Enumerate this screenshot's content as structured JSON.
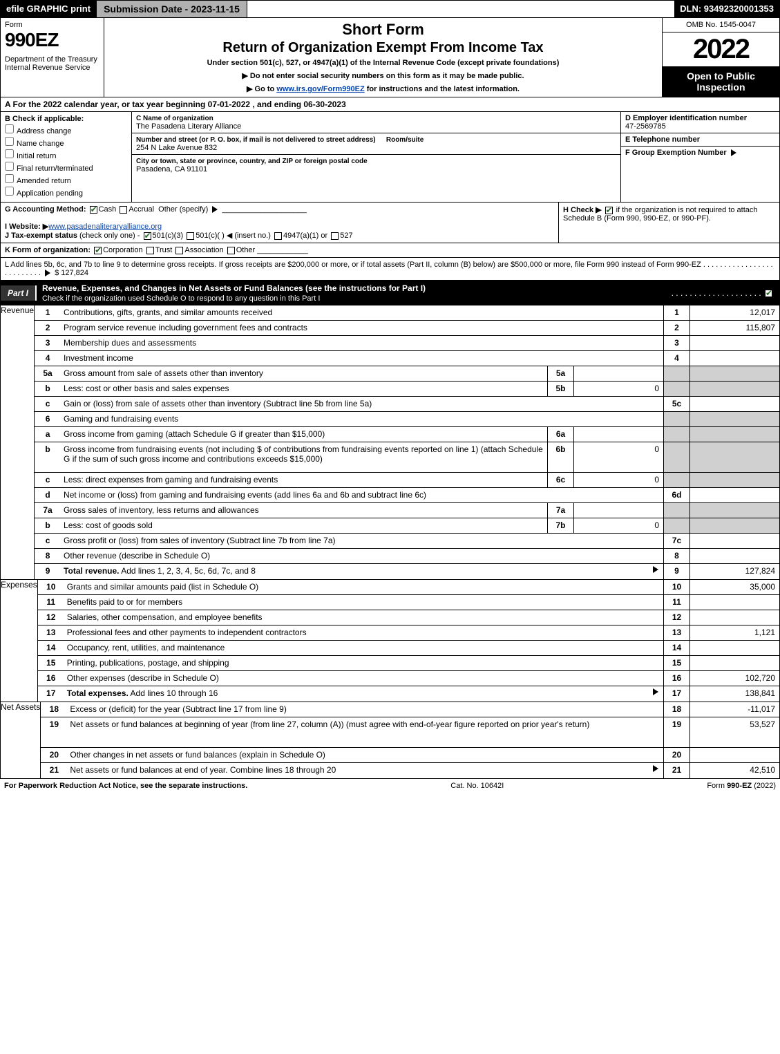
{
  "topbar": {
    "efile": "efile GRAPHIC print",
    "submission": "Submission Date - 2023-11-15",
    "dln": "DLN: 93492320001353"
  },
  "header": {
    "form": "Form",
    "formnum": "990EZ",
    "dept": "Department of the Treasury",
    "irs": "Internal Revenue Service",
    "title1": "Short Form",
    "title2": "Return of Organization Exempt From Income Tax",
    "sub": "Under section 501(c), 527, or 4947(a)(1) of the Internal Revenue Code (except private foundations)",
    "note1": "▶ Do not enter social security numbers on this form as it may be made public.",
    "note2": "▶ Go to ",
    "note2link": "www.irs.gov/Form990EZ",
    "note2b": " for instructions and the latest information.",
    "omb": "OMB No. 1545-0047",
    "year": "2022",
    "open": "Open to Public Inspection"
  },
  "A": {
    "text": "A  For the 2022 calendar year, or tax year beginning 07-01-2022 , and ending 06-30-2023"
  },
  "B": {
    "label": "B  Check if applicable:",
    "items": [
      "Address change",
      "Name change",
      "Initial return",
      "Final return/terminated",
      "Amended return",
      "Application pending"
    ]
  },
  "C": {
    "nameLabel": "C Name of organization",
    "name": "The Pasadena Literary Alliance",
    "streetLabel": "Number and street (or P. O. box, if mail is not delivered to street address)",
    "roomLabel": "Room/suite",
    "street": "254 N Lake Avenue 832",
    "cityLabel": "City or town, state or province, country, and ZIP or foreign postal code",
    "city": "Pasadena, CA  91101"
  },
  "D": {
    "label": "D Employer identification number",
    "val": "47-2569785"
  },
  "E": {
    "label": "E Telephone number",
    "val": ""
  },
  "F": {
    "label": "F Group Exemption Number",
    "arrow": "▶"
  },
  "G": {
    "label": "G Accounting Method:",
    "cash": "Cash",
    "accrual": "Accrual",
    "other": "Other (specify)"
  },
  "H": {
    "label": "H  Check ▶",
    "text": " if the organization is not required to attach Schedule B (Form 990, 990-EZ, or 990-PF)."
  },
  "I": {
    "label": "I Website: ▶",
    "val": "www.pasadenaliteraryalliance.org"
  },
  "J": {
    "label": "J Tax-exempt status",
    "rest": "(check only one) -  ",
    "c3": "501(c)(3)",
    "c": "501(c)(  )",
    "insert": "◀ (insert no.)",
    "a4947": "4947(a)(1) or",
    "s527": "527"
  },
  "K": {
    "label": "K Form of organization:",
    "corp": "Corporation",
    "trust": "Trust",
    "assoc": "Association",
    "other": "Other"
  },
  "L": {
    "text": "L Add lines 5b, 6c, and 7b to line 9 to determine gross receipts. If gross receipts are $200,000 or more, or if total assets (Part II, column (B) below) are $500,000 or more, file Form 990 instead of Form 990-EZ",
    "val": "$ 127,824"
  },
  "partI": {
    "label": "Part I",
    "title": "Revenue, Expenses, and Changes in Net Assets or Fund Balances (see the instructions for Part I)",
    "check": "Check if the organization used Schedule O to respond to any question in this Part I"
  },
  "sidecats": {
    "rev": "Revenue",
    "exp": "Expenses",
    "net": "Net Assets"
  },
  "rows": [
    {
      "n": "1",
      "d": "Contributions, gifts, grants, and similar amounts received",
      "rn": "1",
      "rv": "12,017"
    },
    {
      "n": "2",
      "d": "Program service revenue including government fees and contracts",
      "rn": "2",
      "rv": "115,807"
    },
    {
      "n": "3",
      "d": "Membership dues and assessments",
      "rn": "3",
      "rv": ""
    },
    {
      "n": "4",
      "d": "Investment income",
      "rn": "4",
      "rv": ""
    },
    {
      "n": "5a",
      "d": "Gross amount from sale of assets other than inventory",
      "sc": "5a",
      "sv": "",
      "shadeR": true
    },
    {
      "n": "b",
      "d": "Less: cost or other basis and sales expenses",
      "sc": "5b",
      "sv": "0",
      "shadeR": true
    },
    {
      "n": "c",
      "d": "Gain or (loss) from sale of assets other than inventory (Subtract line 5b from line 5a)",
      "rn": "5c",
      "rv": ""
    },
    {
      "n": "6",
      "d": "Gaming and fundraising events",
      "shadeR": true,
      "shadeN": true
    },
    {
      "n": "a",
      "d": "Gross income from gaming (attach Schedule G if greater than $15,000)",
      "sc": "6a",
      "sv": "",
      "shadeR": true
    },
    {
      "n": "b",
      "d": "Gross income from fundraising events (not including $                         of contributions from fundraising events reported on line 1) (attach Schedule G if the sum of such gross income and contributions exceeds $15,000)",
      "sc": "6b",
      "sv": "0",
      "shadeR": true,
      "tall": true
    },
    {
      "n": "c",
      "d": "Less: direct expenses from gaming and fundraising events",
      "sc": "6c",
      "sv": "0",
      "shadeR": true
    },
    {
      "n": "d",
      "d": "Net income or (loss) from gaming and fundraising events (add lines 6a and 6b and subtract line 6c)",
      "rn": "6d",
      "rv": ""
    },
    {
      "n": "7a",
      "d": "Gross sales of inventory, less returns and allowances",
      "sc": "7a",
      "sv": "",
      "shadeR": true
    },
    {
      "n": "b",
      "d": "Less: cost of goods sold",
      "sc": "7b",
      "sv": "0",
      "shadeR": true
    },
    {
      "n": "c",
      "d": "Gross profit or (loss) from sales of inventory (Subtract line 7b from line 7a)",
      "rn": "7c",
      "rv": ""
    },
    {
      "n": "8",
      "d": "Other revenue (describe in Schedule O)",
      "rn": "8",
      "rv": ""
    },
    {
      "n": "9",
      "d": "Total revenue. Add lines 1, 2, 3, 4, 5c, 6d, 7c, and 8",
      "rn": "9",
      "rv": "127,824",
      "bold": true,
      "arrow": true
    }
  ],
  "exp": [
    {
      "n": "10",
      "d": "Grants and similar amounts paid (list in Schedule O)",
      "rn": "10",
      "rv": "35,000"
    },
    {
      "n": "11",
      "d": "Benefits paid to or for members",
      "rn": "11",
      "rv": ""
    },
    {
      "n": "12",
      "d": "Salaries, other compensation, and employee benefits",
      "rn": "12",
      "rv": ""
    },
    {
      "n": "13",
      "d": "Professional fees and other payments to independent contractors",
      "rn": "13",
      "rv": "1,121"
    },
    {
      "n": "14",
      "d": "Occupancy, rent, utilities, and maintenance",
      "rn": "14",
      "rv": ""
    },
    {
      "n": "15",
      "d": "Printing, publications, postage, and shipping",
      "rn": "15",
      "rv": ""
    },
    {
      "n": "16",
      "d": "Other expenses (describe in Schedule O)",
      "rn": "16",
      "rv": "102,720"
    },
    {
      "n": "17",
      "d": "Total expenses. Add lines 10 through 16",
      "rn": "17",
      "rv": "138,841",
      "bold": true,
      "arrow": true
    }
  ],
  "net": [
    {
      "n": "18",
      "d": "Excess or (deficit) for the year (Subtract line 17 from line 9)",
      "rn": "18",
      "rv": "-11,017"
    },
    {
      "n": "19",
      "d": "Net assets or fund balances at beginning of year (from line 27, column (A)) (must agree with end-of-year figure reported on prior year's return)",
      "rn": "19",
      "rv": "53,527",
      "tall": true
    },
    {
      "n": "20",
      "d": "Other changes in net assets or fund balances (explain in Schedule O)",
      "rn": "20",
      "rv": ""
    },
    {
      "n": "21",
      "d": "Net assets or fund balances at end of year. Combine lines 18 through 20",
      "rn": "21",
      "rv": "42,510",
      "arrow": true
    }
  ],
  "footer": {
    "left": "For Paperwork Reduction Act Notice, see the separate instructions.",
    "mid": "Cat. No. 10642I",
    "right": "Form 990-EZ (2022)"
  }
}
